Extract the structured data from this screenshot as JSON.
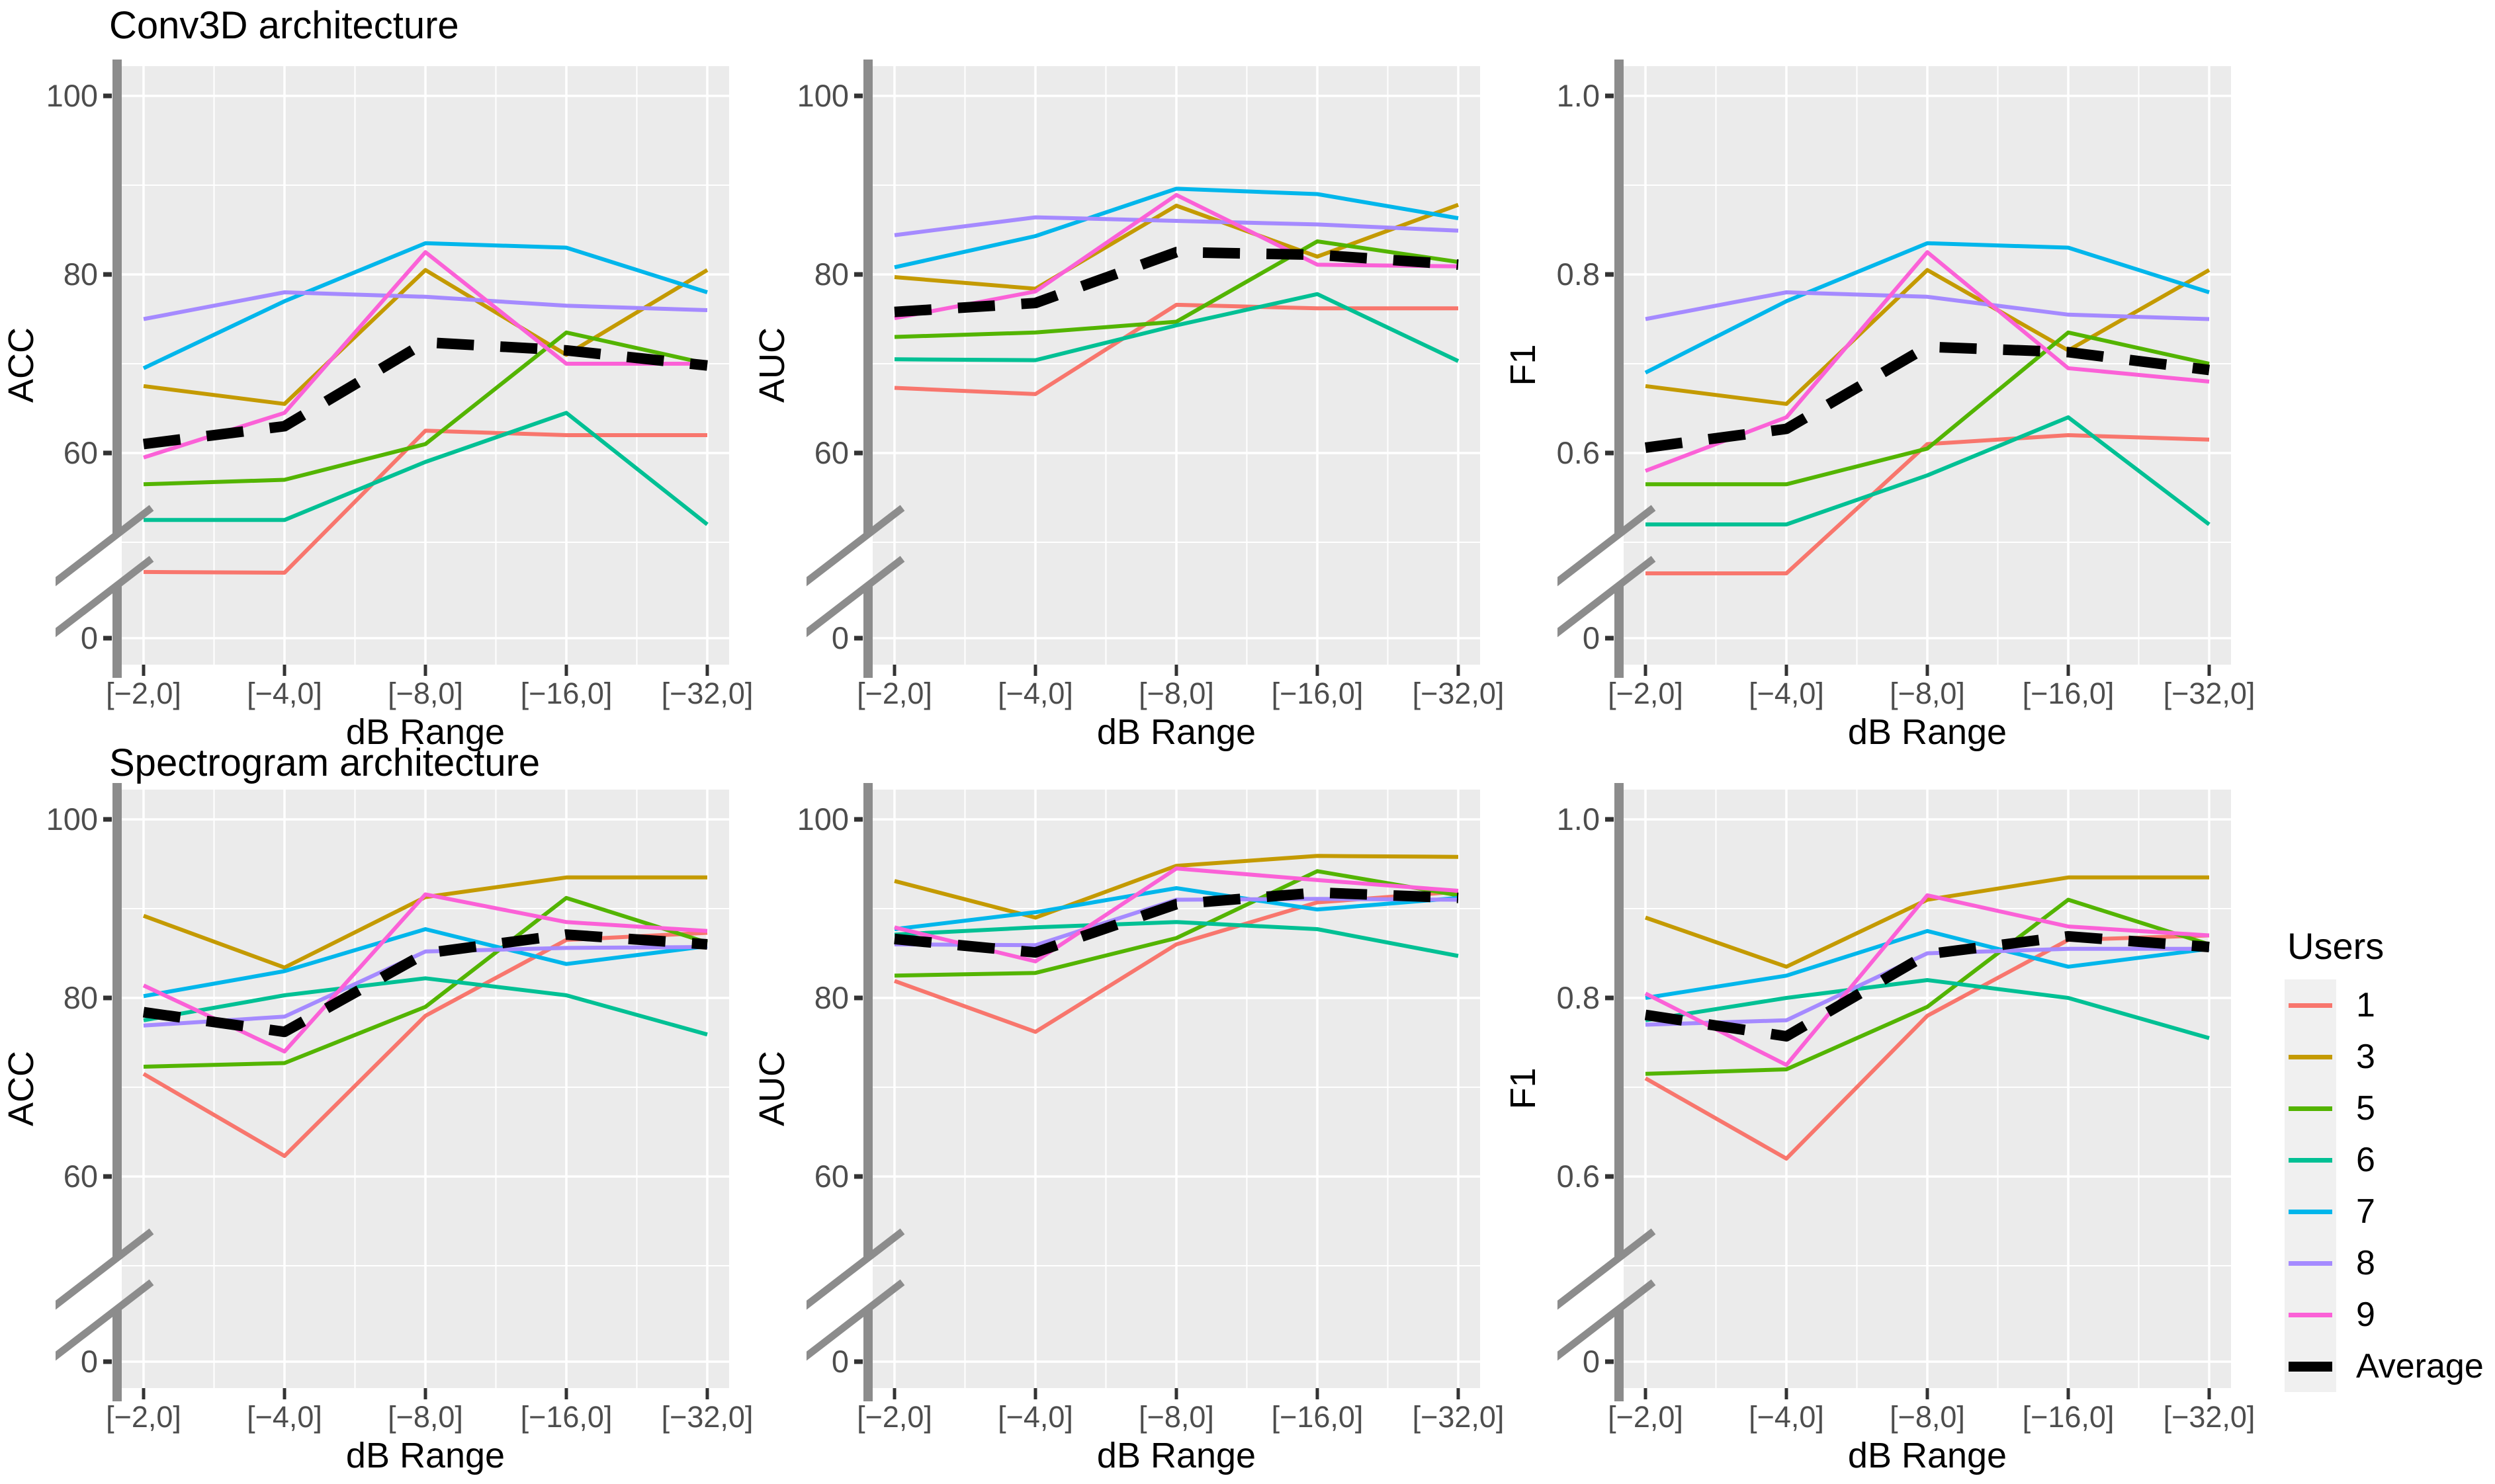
{
  "titles": {
    "row1": "Conv3D architecture",
    "row2": "Spectrogram architecture"
  },
  "x_axis": {
    "title": "dB Range",
    "categories": [
      "[−2,0]",
      "[−4,0]",
      "[−8,0]",
      "[−16,0]",
      "[−32,0]"
    ]
  },
  "y_axis": {
    "pct_ticks": [
      {
        "v": 100,
        "label": "100"
      },
      {
        "v": 80,
        "label": "80"
      },
      {
        "v": 60,
        "label": "60"
      },
      {
        "v": 0,
        "label": "0"
      }
    ],
    "f1_ticks": [
      {
        "v": 100,
        "label": "1.0"
      },
      {
        "v": 80,
        "label": "0.8"
      },
      {
        "v": 60,
        "label": "0.6"
      },
      {
        "v": 0,
        "label": "0"
      }
    ],
    "axis_break": true
  },
  "legend": {
    "title": "Users",
    "entries": [
      {
        "label": "1",
        "color": "#F8766D",
        "thick": false
      },
      {
        "label": "3",
        "color": "#C49A00",
        "thick": false
      },
      {
        "label": "5",
        "color": "#53B400",
        "thick": false
      },
      {
        "label": "6",
        "color": "#00C094",
        "thick": false
      },
      {
        "label": "7",
        "color": "#00B6EB",
        "thick": false
      },
      {
        "label": "8",
        "color": "#A58AFF",
        "thick": false
      },
      {
        "label": "9",
        "color": "#FB61D7",
        "thick": false
      },
      {
        "label": "Average",
        "color": "#000000",
        "thick": true
      }
    ]
  },
  "colors": {
    "plot_bg": "#EBEBEB",
    "grid": "#FFFFFF",
    "axis_bar": "#8C8C8C",
    "tick_mark": "#333333",
    "tick_text": "#4D4D4D"
  },
  "chart_data": [
    {
      "id": "conv3d-acc",
      "type": "line",
      "architecture": "Conv3D",
      "metric": "ACC",
      "ylabel": "ACC",
      "yticks": "pct_ticks",
      "value_scale": 1,
      "ylim": [
        0,
        100
      ],
      "grid": true,
      "series": [
        {
          "name": "1",
          "color": "#F8766D",
          "average": false,
          "values": [
            47,
            46.5,
            62.5,
            62,
            62
          ]
        },
        {
          "name": "3",
          "color": "#C49A00",
          "average": false,
          "values": [
            67.5,
            65.5,
            80.5,
            71,
            80.5
          ]
        },
        {
          "name": "5",
          "color": "#53B400",
          "average": false,
          "values": [
            56.5,
            57,
            61,
            73.5,
            70
          ]
        },
        {
          "name": "6",
          "color": "#00C094",
          "average": false,
          "values": [
            52.5,
            52.5,
            59,
            64.5,
            52
          ]
        },
        {
          "name": "7",
          "color": "#00B6EB",
          "average": false,
          "values": [
            69.5,
            77,
            83.5,
            83,
            78
          ]
        },
        {
          "name": "8",
          "color": "#A58AFF",
          "average": false,
          "values": [
            75,
            78,
            77.5,
            76.5,
            76
          ]
        },
        {
          "name": "9",
          "color": "#FB61D7",
          "average": false,
          "values": [
            59.5,
            64.5,
            82.5,
            70,
            70
          ]
        },
        {
          "name": "Average",
          "color": "#000000",
          "average": true,
          "values": [
            61,
            63,
            72.4,
            71.5,
            69.8
          ]
        }
      ]
    },
    {
      "id": "conv3d-auc",
      "type": "line",
      "architecture": "Conv3D",
      "metric": "AUC",
      "ylabel": "AUC",
      "yticks": "pct_ticks",
      "value_scale": 1,
      "ylim": [
        0,
        100
      ],
      "grid": true,
      "series": [
        {
          "name": "1",
          "color": "#F8766D",
          "average": false,
          "values": [
            67.3,
            66.6,
            76.6,
            76.2,
            76.2
          ]
        },
        {
          "name": "3",
          "color": "#C49A00",
          "average": false,
          "values": [
            79.7,
            78.4,
            87.7,
            82,
            87.8
          ]
        },
        {
          "name": "5",
          "color": "#53B400",
          "average": false,
          "values": [
            73,
            73.5,
            74.7,
            83.7,
            81.4
          ]
        },
        {
          "name": "6",
          "color": "#00C094",
          "average": false,
          "values": [
            70.5,
            70.4,
            74.3,
            77.8,
            70.3
          ]
        },
        {
          "name": "7",
          "color": "#00B6EB",
          "average": false,
          "values": [
            80.8,
            84.3,
            89.6,
            89,
            86.3
          ]
        },
        {
          "name": "8",
          "color": "#A58AFF",
          "average": false,
          "values": [
            84.4,
            86.4,
            86,
            85.6,
            84.9
          ]
        },
        {
          "name": "9",
          "color": "#FB61D7",
          "average": false,
          "values": [
            75.1,
            78.1,
            88.9,
            81.1,
            80.9
          ]
        },
        {
          "name": "Average",
          "color": "#000000",
          "average": true,
          "values": [
            75.8,
            76.8,
            82.5,
            82.2,
            81.1
          ]
        }
      ]
    },
    {
      "id": "conv3d-f1",
      "type": "line",
      "architecture": "Conv3D",
      "metric": "F1",
      "ylabel": "F1",
      "yticks": "f1_ticks",
      "value_scale": 100,
      "ylim": [
        0,
        1
      ],
      "grid": true,
      "series": [
        {
          "name": "1",
          "color": "#F8766D",
          "average": false,
          "values": [
            0.46,
            0.46,
            0.61,
            0.62,
            0.615
          ]
        },
        {
          "name": "3",
          "color": "#C49A00",
          "average": false,
          "values": [
            0.675,
            0.655,
            0.805,
            0.715,
            0.805
          ]
        },
        {
          "name": "5",
          "color": "#53B400",
          "average": false,
          "values": [
            0.565,
            0.565,
            0.605,
            0.735,
            0.7
          ]
        },
        {
          "name": "6",
          "color": "#00C094",
          "average": false,
          "values": [
            0.52,
            0.52,
            0.575,
            0.64,
            0.52
          ]
        },
        {
          "name": "7",
          "color": "#00B6EB",
          "average": false,
          "values": [
            0.69,
            0.77,
            0.835,
            0.83,
            0.78
          ]
        },
        {
          "name": "8",
          "color": "#A58AFF",
          "average": false,
          "values": [
            0.75,
            0.78,
            0.775,
            0.755,
            0.75
          ]
        },
        {
          "name": "9",
          "color": "#FB61D7",
          "average": false,
          "values": [
            0.58,
            0.64,
            0.825,
            0.695,
            0.68
          ]
        },
        {
          "name": "Average",
          "color": "#000000",
          "average": true,
          "values": [
            0.606,
            0.627,
            0.719,
            0.713,
            0.693
          ]
        }
      ]
    },
    {
      "id": "spectrogram-acc",
      "type": "line",
      "architecture": "Spectrogram",
      "metric": "ACC",
      "ylabel": "ACC",
      "yticks": "pct_ticks",
      "value_scale": 1,
      "ylim": [
        0,
        100
      ],
      "grid": true,
      "series": [
        {
          "name": "1",
          "color": "#F8766D",
          "average": false,
          "values": [
            71.5,
            62.3,
            78,
            86.5,
            87.3
          ]
        },
        {
          "name": "3",
          "color": "#C49A00",
          "average": false,
          "values": [
            89.2,
            83.4,
            91.3,
            93.5,
            93.5
          ]
        },
        {
          "name": "5",
          "color": "#53B400",
          "average": false,
          "values": [
            72.3,
            72.7,
            79,
            91.2,
            86.2
          ]
        },
        {
          "name": "6",
          "color": "#00C094",
          "average": false,
          "values": [
            77.5,
            80.3,
            82.2,
            80.3,
            75.9
          ]
        },
        {
          "name": "7",
          "color": "#00B6EB",
          "average": false,
          "values": [
            80.2,
            83,
            87.7,
            83.8,
            85.8
          ]
        },
        {
          "name": "8",
          "color": "#A58AFF",
          "average": false,
          "values": [
            76.9,
            77.9,
            85.2,
            85.6,
            85.7
          ]
        },
        {
          "name": "9",
          "color": "#FB61D7",
          "average": false,
          "values": [
            81.4,
            74,
            91.6,
            88.5,
            87.5
          ]
        },
        {
          "name": "Average",
          "color": "#000000",
          "average": true,
          "values": [
            78.4,
            76.2,
            85,
            87.1,
            86
          ]
        }
      ]
    },
    {
      "id": "spectrogram-auc",
      "type": "line",
      "architecture": "Spectrogram",
      "metric": "AUC",
      "ylabel": "AUC",
      "yticks": "pct_ticks",
      "value_scale": 1,
      "ylim": [
        0,
        100
      ],
      "grid": true,
      "series": [
        {
          "name": "1",
          "color": "#F8766D",
          "average": false,
          "values": [
            81.9,
            76.2,
            86,
            90.7,
            91.9
          ]
        },
        {
          "name": "3",
          "color": "#C49A00",
          "average": false,
          "values": [
            93.1,
            89,
            94.8,
            95.9,
            95.8
          ]
        },
        {
          "name": "5",
          "color": "#53B400",
          "average": false,
          "values": [
            82.5,
            82.8,
            86.7,
            94.2,
            91.5
          ]
        },
        {
          "name": "6",
          "color": "#00C094",
          "average": false,
          "values": [
            87.1,
            87.9,
            88.5,
            87.7,
            84.7
          ]
        },
        {
          "name": "7",
          "color": "#00B6EB",
          "average": false,
          "values": [
            87.7,
            89.6,
            92.3,
            89.9,
            91.2
          ]
        },
        {
          "name": "8",
          "color": "#A58AFF",
          "average": false,
          "values": [
            86,
            85.9,
            91,
            91.1,
            91
          ]
        },
        {
          "name": "9",
          "color": "#FB61D7",
          "average": false,
          "values": [
            87.9,
            84.1,
            94.5,
            93.2,
            92
          ]
        },
        {
          "name": "Average",
          "color": "#000000",
          "average": true,
          "values": [
            86.6,
            85.1,
            90.5,
            91.8,
            91.2
          ]
        }
      ]
    },
    {
      "id": "spectrogram-f1",
      "type": "line",
      "architecture": "Spectrogram",
      "metric": "F1",
      "ylabel": "F1",
      "yticks": "f1_ticks",
      "value_scale": 100,
      "ylim": [
        0,
        1
      ],
      "grid": true,
      "series": [
        {
          "name": "1",
          "color": "#F8766D",
          "average": false,
          "values": [
            0.71,
            0.62,
            0.78,
            0.865,
            0.87
          ]
        },
        {
          "name": "3",
          "color": "#C49A00",
          "average": false,
          "values": [
            0.89,
            0.835,
            0.91,
            0.935,
            0.935
          ]
        },
        {
          "name": "5",
          "color": "#53B400",
          "average": false,
          "values": [
            0.715,
            0.72,
            0.79,
            0.91,
            0.86
          ]
        },
        {
          "name": "6",
          "color": "#00C094",
          "average": false,
          "values": [
            0.775,
            0.8,
            0.82,
            0.8,
            0.755
          ]
        },
        {
          "name": "7",
          "color": "#00B6EB",
          "average": false,
          "values": [
            0.8,
            0.825,
            0.875,
            0.835,
            0.855
          ]
        },
        {
          "name": "8",
          "color": "#A58AFF",
          "average": false,
          "values": [
            0.77,
            0.775,
            0.85,
            0.855,
            0.855
          ]
        },
        {
          "name": "9",
          "color": "#FB61D7",
          "average": false,
          "values": [
            0.805,
            0.725,
            0.915,
            0.88,
            0.87
          ]
        },
        {
          "name": "Average",
          "color": "#000000",
          "average": true,
          "values": [
            0.781,
            0.757,
            0.849,
            0.869,
            0.857
          ]
        }
      ]
    }
  ]
}
